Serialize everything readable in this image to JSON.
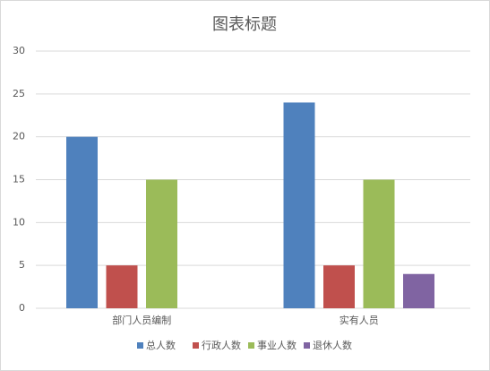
{
  "chart_data": {
    "type": "bar",
    "title": "图表标题",
    "categories": [
      "部门人员编制",
      "实有人员"
    ],
    "series": [
      {
        "name": "总人数",
        "color": "#4f81bd",
        "values": [
          20,
          24
        ]
      },
      {
        "name": "行政人数",
        "color": "#c0504d",
        "values": [
          5,
          5
        ]
      },
      {
        "name": "事业人数",
        "color": "#9bbb59",
        "values": [
          15,
          15
        ]
      },
      {
        "name": "退休人数",
        "color": "#8064a2",
        "values": [
          null,
          4
        ]
      }
    ],
    "ylim": [
      0,
      30
    ],
    "yticks": [
      0,
      5,
      10,
      15,
      20,
      25,
      30
    ],
    "grid": true,
    "legend": "bottom"
  }
}
